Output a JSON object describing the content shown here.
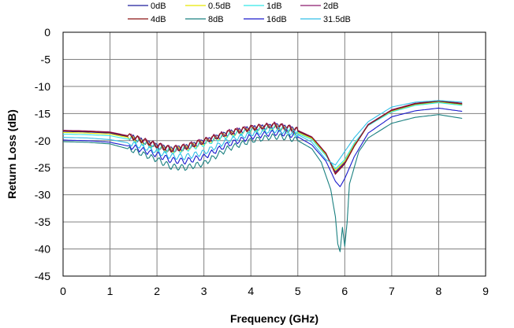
{
  "chart_data": {
    "type": "line",
    "xlabel": "Frequency (GHz)",
    "ylabel": "Return Loss (dB)",
    "xlim": [
      0,
      9
    ],
    "ylim": [
      -45,
      0
    ],
    "x_ticks": [
      "0",
      "1",
      "2",
      "3",
      "4",
      "5",
      "6",
      "7",
      "8",
      "9"
    ],
    "y_ticks": [
      "0",
      "-5",
      "-10",
      "-15",
      "-20",
      "-25",
      "-30",
      "-35",
      "-40",
      "-45"
    ],
    "grid": true,
    "legend_position": "top",
    "series": [
      {
        "name": "0dB",
        "color": "#1c1c9c",
        "x": [
          0,
          0.5,
          1,
          1.5,
          2,
          2.3,
          2.6,
          3,
          3.5,
          4,
          4.5,
          4.8,
          5,
          5.3,
          5.6,
          5.8,
          6,
          6.2,
          6.5,
          7,
          7.5,
          8,
          8.5
        ],
        "y": [
          -18.3,
          -18.4,
          -18.6,
          -19.5,
          -21,
          -21.7,
          -21.3,
          -20.2,
          -18.7,
          -17.8,
          -17.3,
          -17.8,
          -18.3,
          -19.5,
          -22.5,
          -25.8,
          -24,
          -20.8,
          -17,
          -14.5,
          -13.3,
          -12.8,
          -13.3
        ]
      },
      {
        "name": "0.5dB",
        "color": "#e6e600",
        "x": [
          0,
          0.5,
          1,
          1.5,
          2,
          2.3,
          2.6,
          3,
          3.5,
          4,
          4.5,
          4.8,
          5,
          5.3,
          5.6,
          5.8,
          6,
          6.2,
          6.5,
          7,
          7.5,
          8,
          8.5
        ],
        "y": [
          -18.5,
          -18.6,
          -18.8,
          -19.6,
          -21.2,
          -21.8,
          -21.4,
          -20.4,
          -18.9,
          -18,
          -17.5,
          -18,
          -18.5,
          -19.6,
          -22.6,
          -25.5,
          -23.8,
          -20.7,
          -17.1,
          -14.6,
          -13.4,
          -12.9,
          -13.4
        ]
      },
      {
        "name": "1dB",
        "color": "#33e6e6",
        "x": [
          0,
          0.5,
          1,
          1.5,
          2,
          2.3,
          2.6,
          3,
          3.5,
          4,
          4.5,
          4.8,
          5,
          5.3,
          5.6,
          5.8,
          6,
          6.2,
          6.5,
          7,
          7.5,
          8,
          8.5
        ],
        "y": [
          -18.8,
          -18.9,
          -19.1,
          -19.9,
          -21.4,
          -22,
          -21.6,
          -20.6,
          -19.1,
          -18.2,
          -17.7,
          -18.2,
          -18.7,
          -19.8,
          -22.8,
          -25.2,
          -23.5,
          -20.5,
          -17.2,
          -14.7,
          -13.5,
          -13,
          -13.5
        ]
      },
      {
        "name": "2dB",
        "color": "#8c1a6e",
        "x": [
          0,
          0.5,
          1,
          1.5,
          2,
          2.3,
          2.6,
          3,
          3.5,
          4,
          4.5,
          4.8,
          5,
          5.3,
          5.6,
          5.8,
          6,
          6.2,
          6.5,
          7,
          7.5,
          8,
          8.5
        ],
        "y": [
          -18.1,
          -18.2,
          -18.4,
          -19.3,
          -20.8,
          -21.5,
          -21.1,
          -20,
          -18.5,
          -17.6,
          -17.1,
          -17.6,
          -18.1,
          -19.3,
          -22.3,
          -26,
          -24.2,
          -21,
          -17,
          -14.3,
          -13.1,
          -12.6,
          -13.1
        ]
      },
      {
        "name": "4dB",
        "color": "#8a1414",
        "x": [
          0,
          0.5,
          1,
          1.5,
          2,
          2.3,
          2.6,
          3,
          3.5,
          4,
          4.5,
          4.8,
          5,
          5.3,
          5.6,
          5.8,
          6,
          6.2,
          6.5,
          7,
          7.5,
          8,
          8.5
        ],
        "y": [
          -18.2,
          -18.3,
          -18.5,
          -19.4,
          -20.9,
          -21.6,
          -21.2,
          -20.1,
          -18.6,
          -17.7,
          -17.2,
          -17.7,
          -18.2,
          -19.4,
          -22.4,
          -26.2,
          -24.3,
          -21.1,
          -17.1,
          -14.4,
          -13.2,
          -12.7,
          -13.2
        ]
      },
      {
        "name": "8dB",
        "color": "#1a8080",
        "x": [
          0,
          0.5,
          1,
          1.5,
          2,
          2.3,
          2.6,
          3,
          3.5,
          4,
          4.5,
          4.8,
          5,
          5.3,
          5.5,
          5.7,
          5.8,
          5.85,
          5.9,
          5.95,
          6.0,
          6.05,
          6.1,
          6.3,
          6.5,
          7,
          7.5,
          8,
          8.5
        ],
        "y": [
          -20.2,
          -20.3,
          -20.6,
          -21.8,
          -23.5,
          -24.8,
          -25,
          -24.2,
          -21.5,
          -20,
          -19.2,
          -19.4,
          -20,
          -21.5,
          -24,
          -29,
          -34,
          -39,
          -40.5,
          -36,
          -39.5,
          -35,
          -28,
          -22,
          -19.5,
          -16.8,
          -15.7,
          -15.2,
          -15.9
        ]
      },
      {
        "name": "16dB",
        "color": "#1a1acc",
        "x": [
          0,
          0.5,
          1,
          1.5,
          2,
          2.3,
          2.6,
          3,
          3.5,
          4,
          4.5,
          4.8,
          5,
          5.3,
          5.6,
          5.8,
          5.9,
          6,
          6.2,
          6.5,
          7,
          7.5,
          8,
          8.5
        ],
        "y": [
          -19.9,
          -20,
          -20.3,
          -21.2,
          -22.6,
          -23.6,
          -23.8,
          -23,
          -20.7,
          -19.3,
          -18.5,
          -18.7,
          -19.3,
          -20.8,
          -23.8,
          -27.5,
          -28.5,
          -27,
          -23,
          -18.6,
          -15.6,
          -14.5,
          -14,
          -14.6
        ]
      },
      {
        "name": "31.5dB",
        "color": "#33bfe6",
        "x": [
          0,
          0.5,
          1,
          1.5,
          2,
          2.3,
          2.6,
          3,
          3.5,
          4,
          4.5,
          4.8,
          5,
          5.3,
          5.6,
          5.8,
          6,
          6.2,
          6.5,
          7,
          7.5,
          8,
          8.5
        ],
        "y": [
          -19.4,
          -19.5,
          -19.8,
          -20.6,
          -22,
          -22.9,
          -23,
          -22.2,
          -20,
          -18.7,
          -18,
          -18.3,
          -18.9,
          -20.3,
          -23.5,
          -24.5,
          -22,
          -19.5,
          -16.5,
          -13.8,
          -12.9,
          -12.6,
          -12.9
        ]
      }
    ]
  }
}
